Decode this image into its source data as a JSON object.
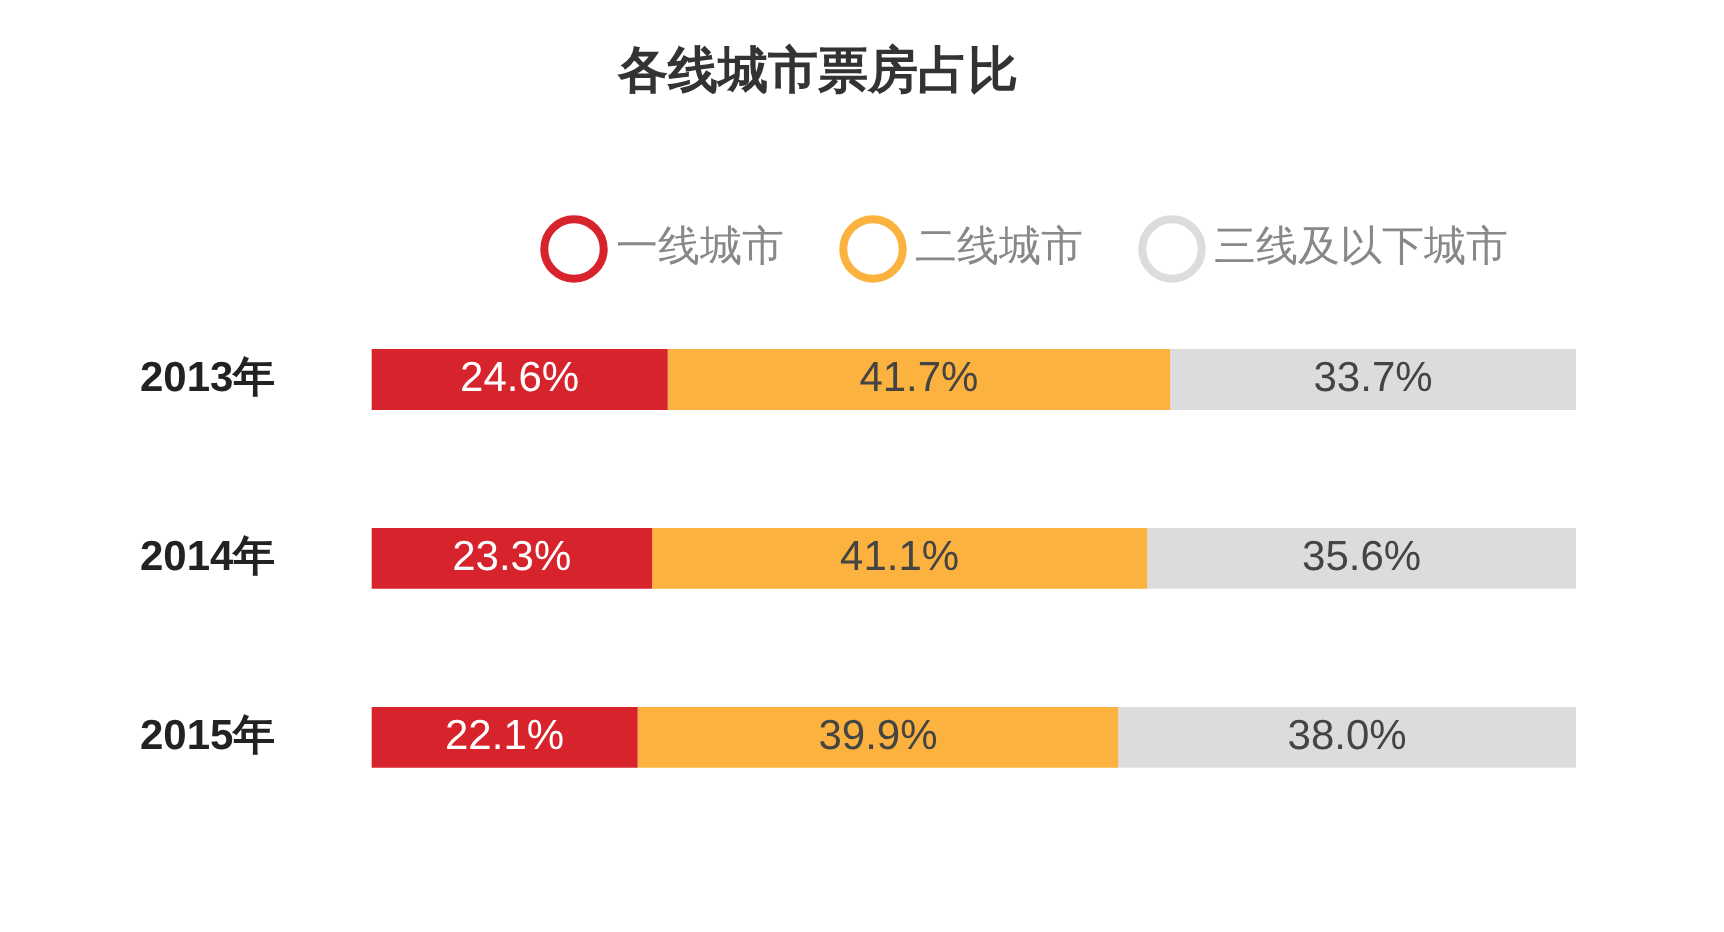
{
  "chart_data": {
    "type": "bar",
    "orientation": "horizontal",
    "stacked": true,
    "title": "各线城市票房占比",
    "categories": [
      "2013年",
      "2014年",
      "2015年"
    ],
    "series": [
      {
        "name": "一线城市",
        "color": "#d6232c",
        "values": [
          24.6,
          23.3,
          22.1
        ],
        "value_labels": [
          "24.6%",
          "23.3%",
          "22.1%"
        ]
      },
      {
        "name": "二线城市",
        "color": "#fbb23e",
        "values": [
          41.7,
          41.1,
          39.9
        ],
        "value_labels": [
          "41.7%",
          "41.1%",
          "39.9%"
        ]
      },
      {
        "name": "三线及以下城市",
        "color": "#dcdcdc",
        "values": [
          33.7,
          35.6,
          38.0
        ],
        "value_labels": [
          "33.7%",
          "35.6%",
          "38.0%"
        ]
      }
    ],
    "xlim": [
      0,
      100
    ],
    "tick_labels": "y",
    "legend": "top",
    "marker": "circle",
    "grid": false
  }
}
